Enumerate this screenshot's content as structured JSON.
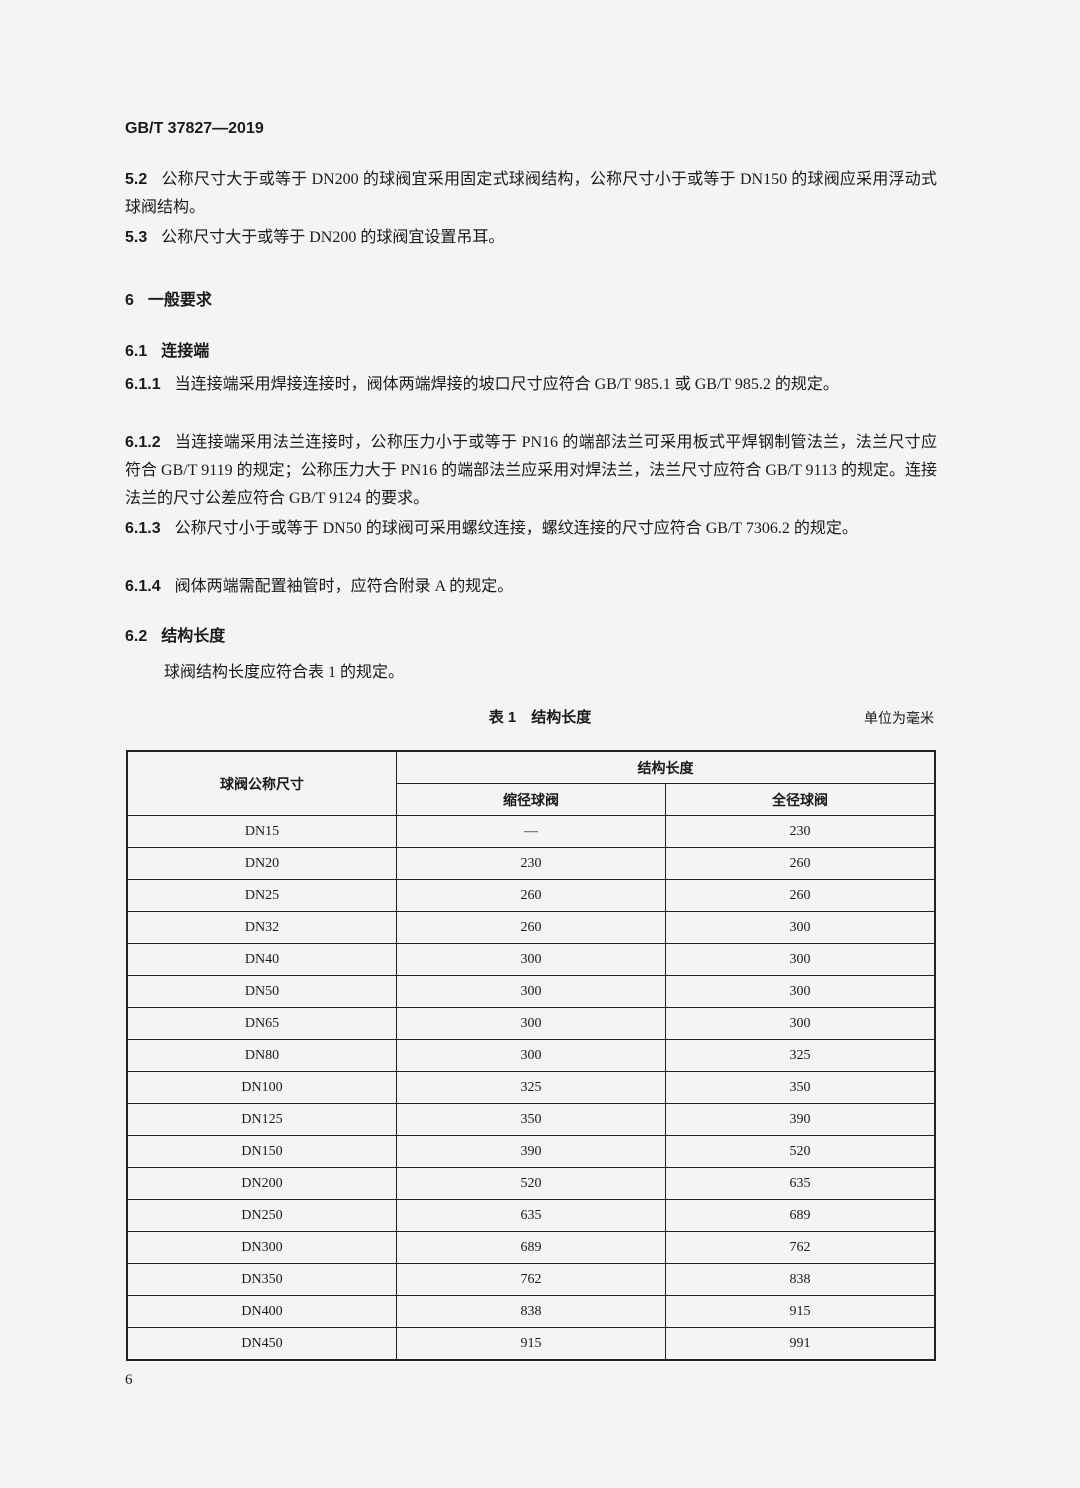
{
  "header": {
    "standard_no": "GB/T 37827—2019"
  },
  "sections": [
    {
      "num": "5.2",
      "text": "公称尺寸大于或等于 DN200 的球阀宜采用固定式球阀结构，公称尺寸小于或等于 DN150 的球阀应采用浮动式球阀结构。"
    },
    {
      "num": "5.3",
      "text": "公称尺寸大于或等于 DN200 的球阀宜设置吊耳。"
    }
  ],
  "heading6": {
    "num": "6",
    "title": "一般要求"
  },
  "heading61": {
    "num": "6.1",
    "title": "连接端"
  },
  "clauses": [
    {
      "num": "6.1.1",
      "text": "当连接端采用焊接连接时，阀体两端焊接的坡口尺寸应符合 GB/T 985.1 或 GB/T 985.2 的规定。"
    },
    {
      "num": "6.1.2",
      "text": "当连接端采用法兰连接时，公称压力小于或等于 PN16 的端部法兰可采用板式平焊钢制管法兰，法兰尺寸应符合 GB/T 9119 的规定；公称压力大于 PN16 的端部法兰应采用对焊法兰，法兰尺寸应符合 GB/T 9113 的规定。连接法兰的尺寸公差应符合 GB/T 9124 的要求。"
    },
    {
      "num": "6.1.3",
      "text": "公称尺寸小于或等于 DN50 的球阀可采用螺纹连接，螺纹连接的尺寸应符合 GB/T 7306.2 的规定。"
    },
    {
      "num": "6.1.4",
      "text": "阀体两端需配置袖管时，应符合附录 A 的规定。"
    }
  ],
  "heading62": {
    "num": "6.2",
    "title": "结构长度"
  },
  "intro": "球阀结构长度应符合表 1 的规定。",
  "table": {
    "caption": "表 1　结构长度",
    "unit": "单位为毫米",
    "col_size": "球阀公称尺寸",
    "col_group": "结构长度",
    "col_reduced": "缩径球阀",
    "col_full": "全径球阀",
    "rows": [
      [
        "DN15",
        "—",
        "230"
      ],
      [
        "DN20",
        "230",
        "260"
      ],
      [
        "DN25",
        "260",
        "260"
      ],
      [
        "DN32",
        "260",
        "300"
      ],
      [
        "DN40",
        "300",
        "300"
      ],
      [
        "DN50",
        "300",
        "300"
      ],
      [
        "DN65",
        "300",
        "300"
      ],
      [
        "DN80",
        "300",
        "325"
      ],
      [
        "DN100",
        "325",
        "350"
      ],
      [
        "DN125",
        "350",
        "390"
      ],
      [
        "DN150",
        "390",
        "520"
      ],
      [
        "DN200",
        "520",
        "635"
      ],
      [
        "DN250",
        "635",
        "689"
      ],
      [
        "DN300",
        "689",
        "762"
      ],
      [
        "DN350",
        "762",
        "838"
      ],
      [
        "DN400",
        "838",
        "915"
      ],
      [
        "DN450",
        "915",
        "991"
      ]
    ]
  },
  "footer": {
    "page": "6"
  }
}
